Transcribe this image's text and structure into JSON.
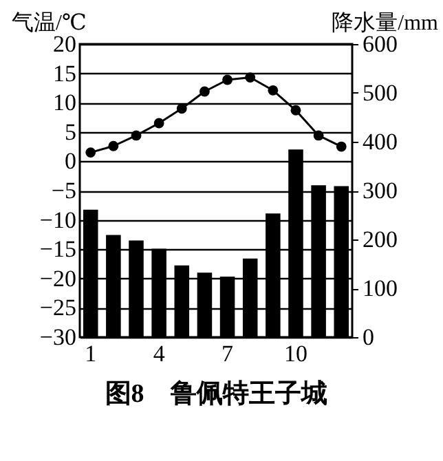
{
  "chart_data": {
    "type": "bar",
    "title": "图8　鲁佩特王子城",
    "ylabel": "气温/℃",
    "y2label": "降水量/mm",
    "categories": [
      "1",
      null,
      null,
      "4",
      null,
      null,
      "7",
      null,
      null,
      "10",
      null,
      null
    ],
    "series": [
      {
        "axis": "y2",
        "color": "#000000",
        "values": [
          261,
          209,
          198,
          181,
          147,
          132,
          124,
          161,
          253,
          384,
          311,
          309
        ]
      },
      {
        "type": "line",
        "color": "#000000",
        "marker": "circle",
        "values": [
          1.5,
          2.6,
          4.4,
          6.5,
          9.0,
          11.9,
          13.9,
          14.3,
          12.1,
          8.7,
          4.4,
          2.5
        ]
      }
    ],
    "ylim": [
      -30,
      20
    ],
    "yticks": [
      -30,
      -25,
      -20,
      -15,
      -10,
      -5,
      0,
      5,
      10,
      15,
      20
    ],
    "y2lim": [
      0,
      600
    ],
    "y2ticks": [
      0,
      100,
      200,
      300,
      400,
      500,
      600
    ],
    "grid": "y"
  }
}
